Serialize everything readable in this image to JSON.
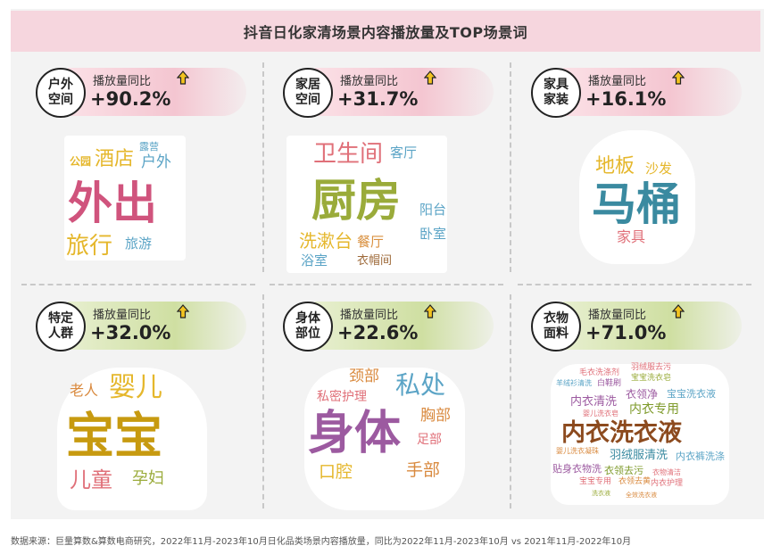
{
  "title": "抖音日化家清场景内容播放量及TOP场景词",
  "metric_label": "播放量同比",
  "chart_data": [
    {
      "type": "table",
      "scene": "户外\n空间",
      "growth_text": "+90.2%",
      "growth_pct": 90.2,
      "words": [
        "外出",
        "酒店",
        "户外",
        "旅行",
        "旅游",
        "公园",
        "露营"
      ]
    },
    {
      "type": "table",
      "scene": "家居\n空间",
      "growth_text": "+31.7%",
      "growth_pct": 31.7,
      "words": [
        "厨房",
        "卫生间",
        "客厅",
        "洗漱台",
        "餐厅",
        "阳台",
        "卧室",
        "浴室",
        "衣帽间"
      ]
    },
    {
      "type": "table",
      "scene": "家具\n家装",
      "growth_text": "+16.1%",
      "growth_pct": 16.1,
      "words": [
        "马桶",
        "地板",
        "沙发",
        "家具"
      ]
    },
    {
      "type": "table",
      "scene": "特定\n人群",
      "growth_text": "+32.0%",
      "growth_pct": 32.0,
      "words": [
        "宝宝",
        "婴儿",
        "老人",
        "儿童",
        "孕妇"
      ]
    },
    {
      "type": "table",
      "scene": "身体\n部位",
      "growth_text": "+22.6%",
      "growth_pct": 22.6,
      "words": [
        "身体",
        "私处",
        "颈部",
        "私密护理",
        "胸部",
        "足部",
        "口腔",
        "手部"
      ]
    },
    {
      "type": "table",
      "scene": "衣物\n面料",
      "growth_text": "+71.0%",
      "growth_pct": 71.0,
      "words": [
        "内衣洗衣液",
        "内衣清洗",
        "内衣专用",
        "衣领净",
        "宝宝洗衣液",
        "羽绒服清洗",
        "内衣裤洗涤",
        "贴身衣物洗",
        "衣领去污",
        "毛衣洗涤剂",
        "羽绒服去污",
        "宝宝洗衣皂",
        "白鞋刷",
        "羊绒衫清洗",
        "婴儿洗衣皂",
        "婴儿洗衣凝珠",
        "宝宝专用",
        "衣领去黄",
        "衣物清洁",
        "内衣护理",
        "洗衣液",
        "全效洗衣液"
      ]
    }
  ],
  "colors": {
    "pink": "#d0547d",
    "green": "#9aab3a",
    "blue": "#5ba4c6",
    "yellow": "#e5b72c",
    "red": "#e07079",
    "purple": "#9c5aa0",
    "orange": "#d98a3f",
    "brown": "#9e6a3a",
    "darkbrown": "#8c4a1e",
    "teal": "#3a8aa0",
    "olive": "#7e9a2a",
    "gold": "#c79a10"
  },
  "footer": "数据来源：巨量算数&算数电商研究，2022年11月-2023年10月日化品类场景内容播放量，同比为2022年11月-2023年10月 vs 2021年11月-2022年10月"
}
